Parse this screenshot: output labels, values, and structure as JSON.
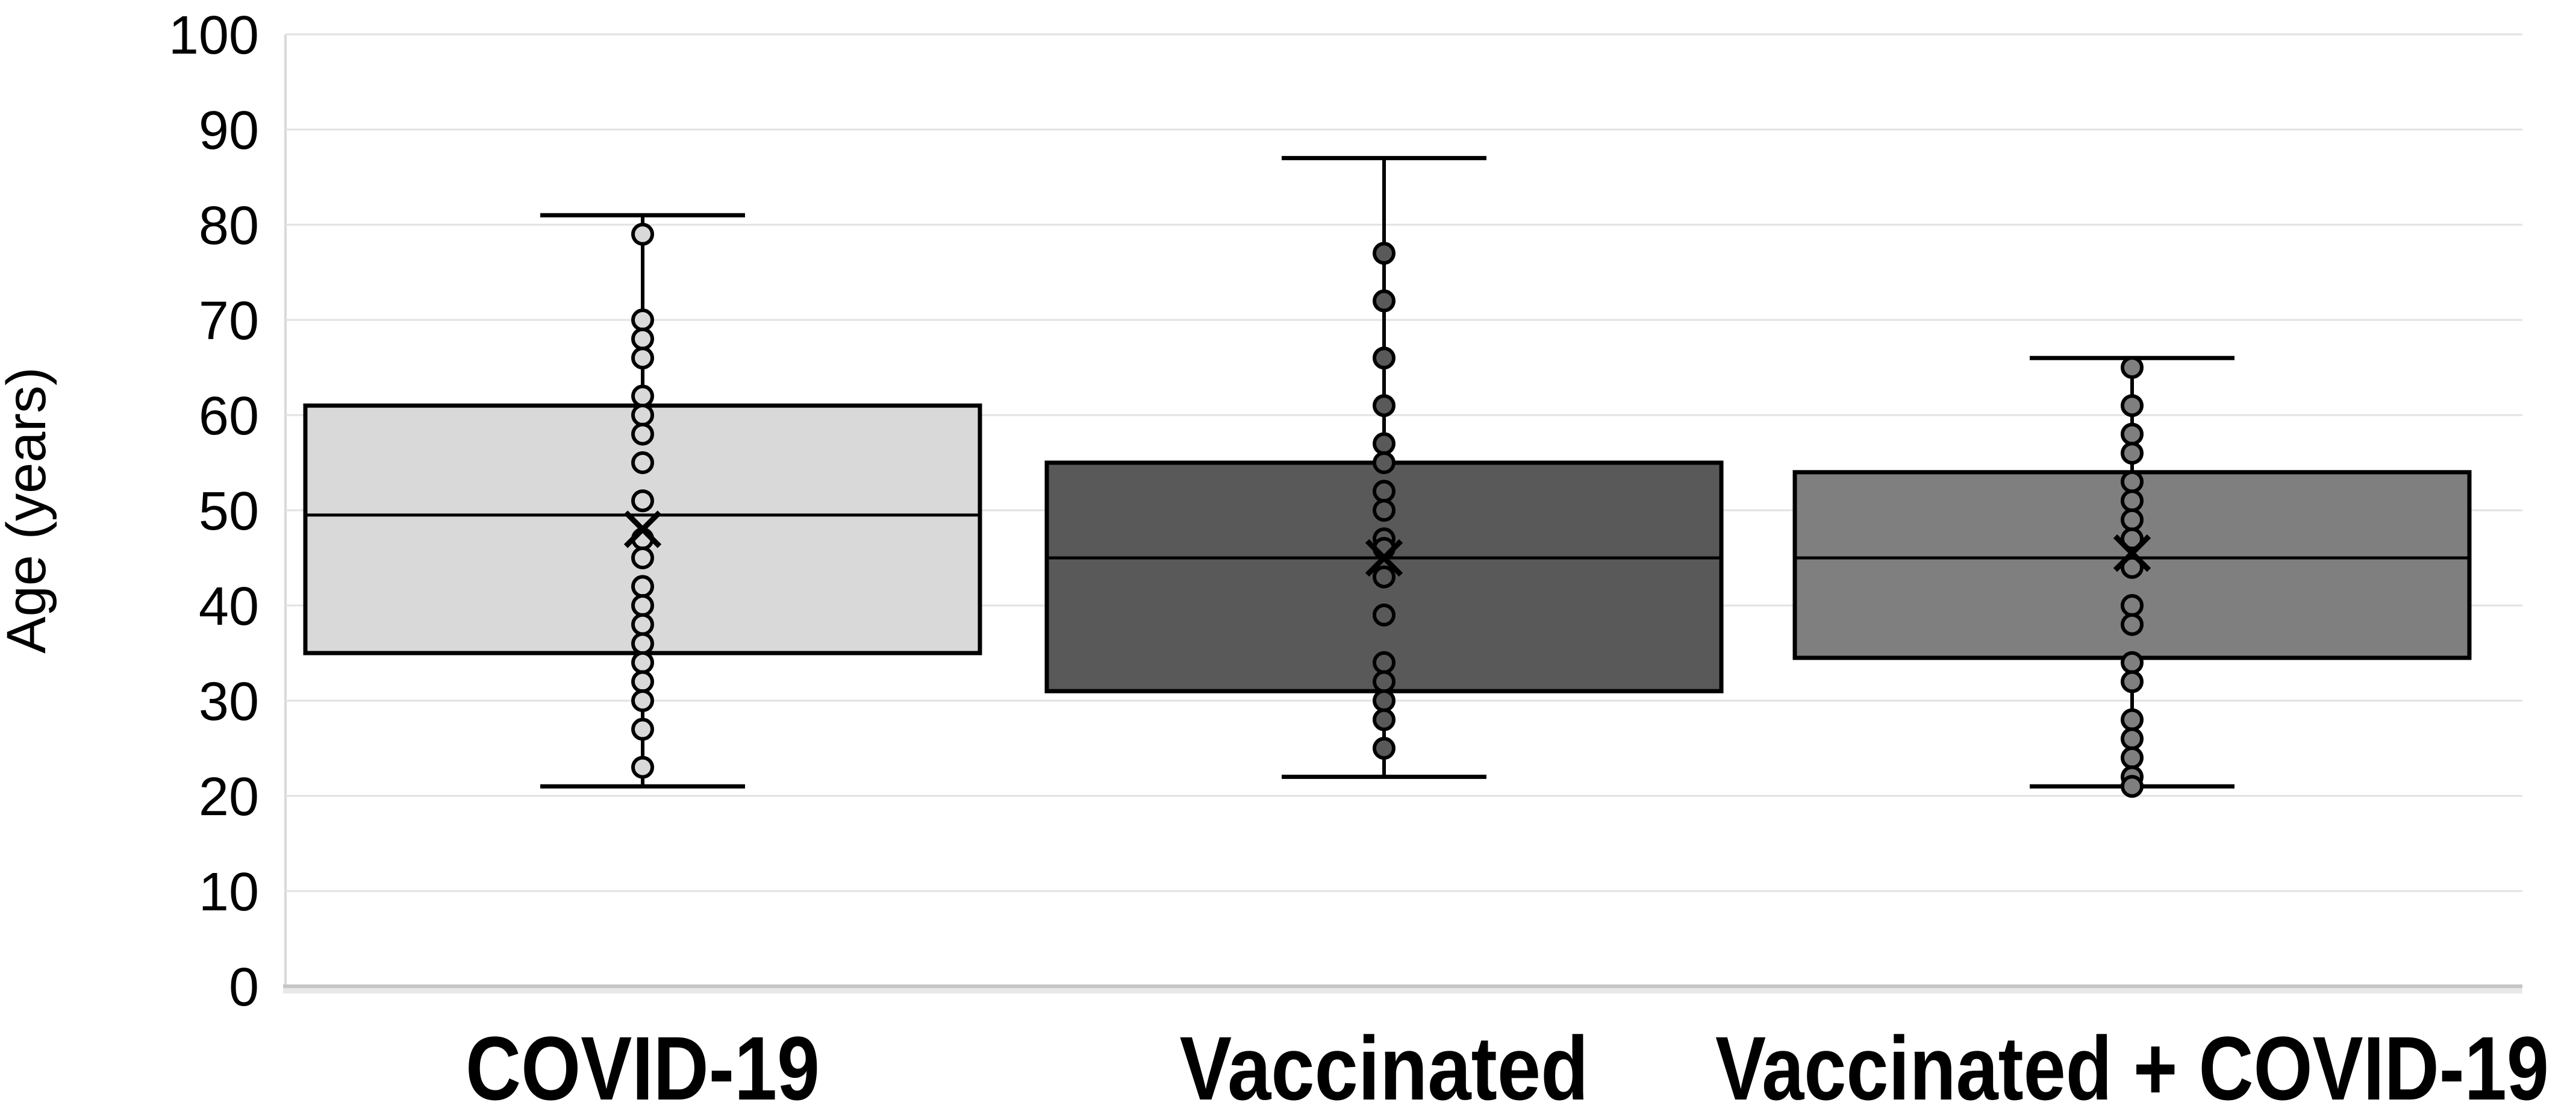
{
  "chart_data": {
    "type": "box",
    "title": "",
    "ylabel": "Age (years)",
    "xlabel": "",
    "ylim": [
      0,
      100
    ],
    "yticks": [
      0,
      10,
      20,
      30,
      40,
      50,
      60,
      70,
      80,
      90,
      100
    ],
    "grid": "horizontal",
    "legend": "none",
    "gridline_color": "#e2e2e2",
    "baseline_color": "#c6c6c6",
    "box_border_color": "#000000",
    "mean_marker": "x",
    "point_marker": "circle-outline",
    "categories": [
      "COVID-19",
      "Vaccinated",
      "Vaccinated + COVID-19"
    ],
    "series": [
      {
        "name": "COVID-19",
        "color": "#d9d9d9",
        "whisker_low": 21,
        "q1": 35,
        "median": 49.5,
        "q3": 61,
        "whisker_high": 81,
        "mean": 48,
        "points": [
          79,
          70,
          68,
          66,
          62,
          60,
          58,
          55,
          51,
          47,
          45,
          42,
          40,
          38,
          36,
          34,
          32,
          30,
          27,
          23
        ]
      },
      {
        "name": "Vaccinated",
        "color": "#595959",
        "whisker_low": 22,
        "q1": 31,
        "median": 45,
        "q3": 55,
        "whisker_high": 87,
        "mean": 45,
        "points": [
          77,
          72,
          66,
          61,
          57,
          55,
          52,
          50,
          47,
          46,
          43,
          39,
          34,
          32,
          30,
          28,
          25
        ]
      },
      {
        "name": "Vaccinated + COVID-19",
        "color": "#7f7f7f",
        "whisker_low": 21,
        "q1": 34.5,
        "median": 45,
        "q3": 54,
        "whisker_high": 66,
        "mean": 45.5,
        "points": [
          65,
          61,
          58,
          56,
          53,
          51,
          49,
          47,
          44,
          40,
          38,
          34,
          32,
          28,
          26,
          24,
          22,
          21
        ]
      }
    ],
    "category_label_widths": [
      588,
      679,
      1384
    ]
  }
}
